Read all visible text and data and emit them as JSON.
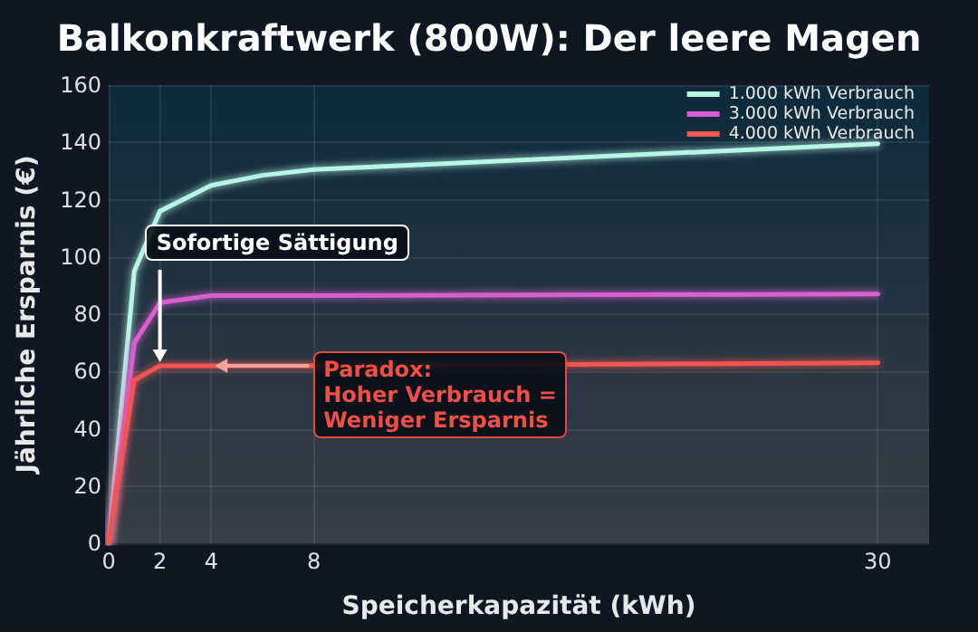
{
  "chart_data": {
    "type": "line",
    "title": "Balkonkraftwerk (800W): Der leere Magen",
    "xlabel": "Speicherkapazität (kWh)",
    "ylabel": "Jährliche Ersparnis (€)",
    "x": [
      0,
      1,
      2,
      4,
      6,
      8,
      30
    ],
    "series": [
      {
        "name": "1.000 kWh Verbrauch",
        "color": "#b8f5e8",
        "values": [
          0,
          95,
          116,
          125,
          128.5,
          130.5,
          139.5
        ]
      },
      {
        "name": "3.000 kWh Verbrauch",
        "color": "#d85ed0",
        "values": [
          0,
          70,
          84,
          86.5,
          86.5,
          86.5,
          87
        ]
      },
      {
        "name": "4.000 kWh Verbrauch",
        "color": "#f0554f",
        "values": [
          0,
          57,
          62,
          62,
          62,
          62,
          63
        ]
      }
    ],
    "xlim": [
      0,
      32
    ],
    "xticks": [
      0,
      2,
      4,
      8,
      30
    ],
    "ylim": [
      0,
      160
    ],
    "yticks": [
      0,
      20,
      40,
      60,
      80,
      100,
      120,
      140,
      160
    ],
    "grid": true,
    "legend": "top right",
    "marker": "none",
    "line_style": "solid",
    "annotations": [
      {
        "text": "Sofortige Sättigung",
        "x": 2,
        "y": 62
      },
      {
        "text": "Paradox:\nHoher Verbrauch =\nWeniger Ersparnis",
        "x": 4,
        "y": 62
      }
    ]
  }
}
